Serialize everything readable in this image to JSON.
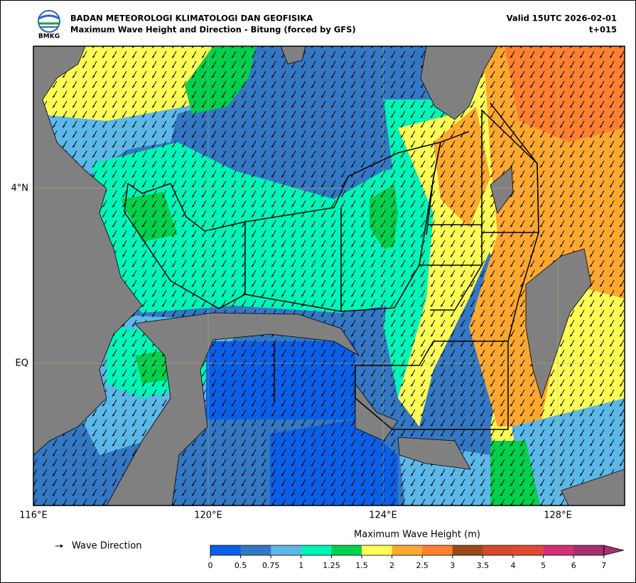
{
  "header": {
    "logo_text": "BMKG",
    "title": "BADAN METEOROLOGI KLIMATOLOGI DAN GEOFISIKA",
    "subtitle": "Maximum Wave Height and Direction - Bitung (forced by GFS)",
    "valid": "Valid 15UTC 2026-02-01",
    "lead": "t+015"
  },
  "map": {
    "lon_labels": [
      "116°E",
      "120°E",
      "124°E",
      "128°E"
    ],
    "lat_labels": [
      "4°N",
      "EQ"
    ]
  },
  "legend": {
    "label": "Wave Direction"
  },
  "colorbar": {
    "title": "Maximum Wave Height (m)",
    "ticks": [
      0,
      0.5,
      0.75,
      1,
      1.25,
      1.5,
      2,
      2.5,
      3,
      3.5,
      4,
      5,
      6,
      7
    ],
    "colors": [
      "#0a5fe6",
      "#3478c4",
      "#5cb8e8",
      "#00f5b8",
      "#00d04c",
      "#ffff55",
      "#ffa830",
      "#ff8030",
      "#9a4a18",
      "#d44a2c",
      "#e04a30",
      "#d42f78",
      "#a8306e"
    ],
    "extend_color": "#a8306e"
  }
}
